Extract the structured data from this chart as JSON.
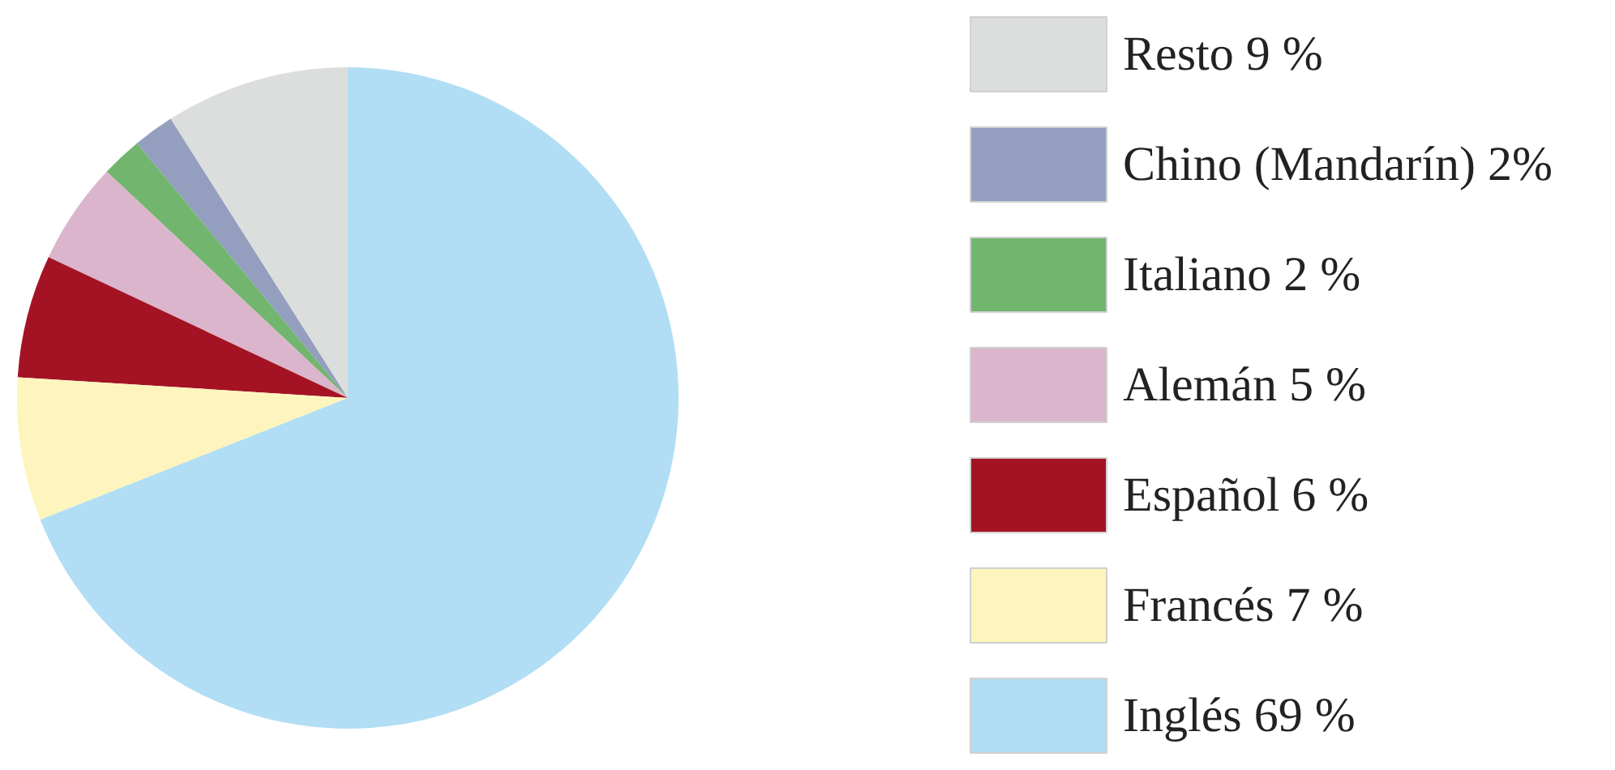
{
  "chart_data": {
    "type": "pie",
    "categories": [
      "Resto 9 %",
      "Chino (Mandarín) 2%",
      "Italiano 2 %",
      "Alemán 5 %",
      "Español 6 %",
      "Francés 7 %",
      "Inglés 69 %"
    ],
    "values": [
      9,
      2,
      2,
      5,
      6,
      7,
      69
    ],
    "colors": [
      "#dcdedd",
      "#949ebf",
      "#72b56f",
      "#dbb5cb",
      "#a41324",
      "#fdf5bd",
      "#b1def4"
    ],
    "legend": "right"
  }
}
